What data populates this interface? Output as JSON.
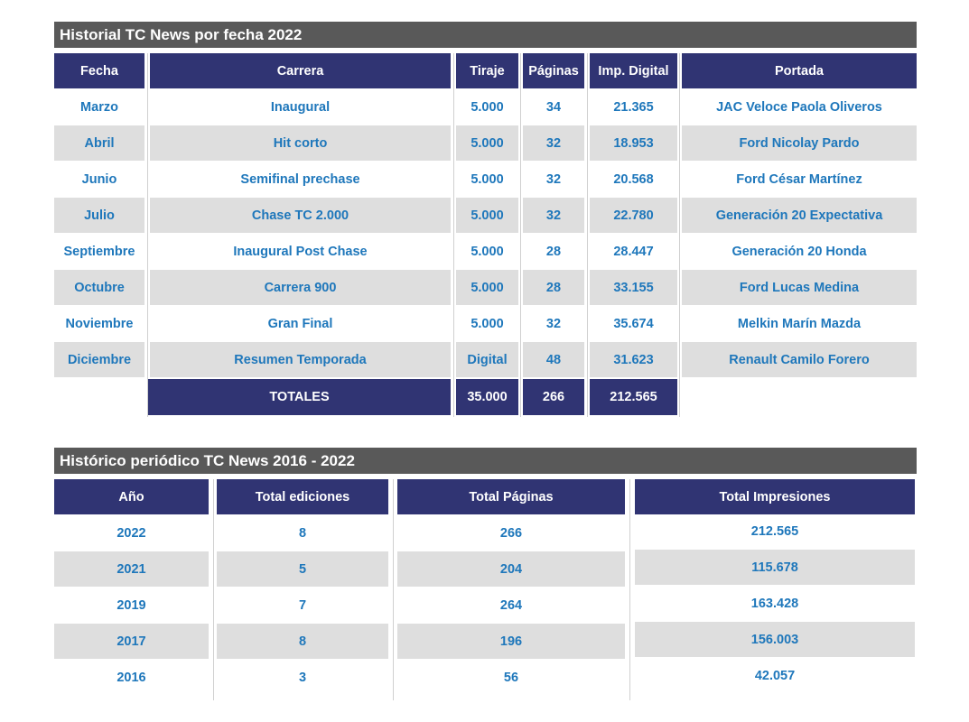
{
  "table1": {
    "title": "Historial TC News por fecha 2022",
    "headers": {
      "fecha": "Fecha",
      "carrera": "Carrera",
      "tiraje": "Tiraje",
      "paginas": "Páginas",
      "imp_digital": "Imp. Digital",
      "portada": "Portada"
    },
    "rows": [
      {
        "fecha": "Marzo",
        "carrera": "Inaugural",
        "tiraje": "5.000",
        "paginas": "34",
        "imp_digital": "21.365",
        "portada": "JAC Veloce Paola Oliveros"
      },
      {
        "fecha": "Abril",
        "carrera": "Hit corto",
        "tiraje": "5.000",
        "paginas": "32",
        "imp_digital": "18.953",
        "portada": "Ford Nicolay Pardo"
      },
      {
        "fecha": "Junio",
        "carrera": "Semifinal prechase",
        "tiraje": "5.000",
        "paginas": "32",
        "imp_digital": "20.568",
        "portada": "Ford César Martínez"
      },
      {
        "fecha": "Julio",
        "carrera": "Chase TC 2.000",
        "tiraje": "5.000",
        "paginas": "32",
        "imp_digital": "22.780",
        "portada": "Generación 20 Expectativa"
      },
      {
        "fecha": "Septiembre",
        "carrera": "Inaugural Post Chase",
        "tiraje": "5.000",
        "paginas": "28",
        "imp_digital": "28.447",
        "portada": "Generación 20 Honda"
      },
      {
        "fecha": "Octubre",
        "carrera": "Carrera 900",
        "tiraje": "5.000",
        "paginas": "28",
        "imp_digital": "33.155",
        "portada": "Ford Lucas Medina"
      },
      {
        "fecha": "Noviembre",
        "carrera": "Gran Final",
        "tiraje": "5.000",
        "paginas": "32",
        "imp_digital": "35.674",
        "portada": "Melkin Marín Mazda"
      },
      {
        "fecha": "Diciembre",
        "carrera": "Resumen Temporada",
        "tiraje": "Digital",
        "paginas": "48",
        "imp_digital": "31.623",
        "portada": "Renault Camilo Forero"
      }
    ],
    "totals": {
      "label": "TOTALES",
      "tiraje": "35.000",
      "paginas": "266",
      "imp_digital": "212.565"
    }
  },
  "table2": {
    "title": "Histórico periódico TC News 2016 - 2022",
    "headers": {
      "anio": "Año",
      "ediciones": "Total ediciones",
      "paginas": "Total Páginas",
      "impresiones": "Total Impresiones"
    },
    "rows": [
      {
        "anio": "2022",
        "ediciones": "8",
        "paginas": "266",
        "impresiones": "212.565"
      },
      {
        "anio": "2021",
        "ediciones": "5",
        "paginas": "204",
        "impresiones": "115.678"
      },
      {
        "anio": "2019",
        "ediciones": "7",
        "paginas": "264",
        "impresiones": "163.428"
      },
      {
        "anio": "2017",
        "ediciones": "8",
        "paginas": "196",
        "impresiones": "156.003"
      },
      {
        "anio": "2016",
        "ediciones": "3",
        "paginas": "56",
        "impresiones": "42.057"
      }
    ]
  },
  "colors": {
    "header_bg": "#303473",
    "section_bar": "#595959",
    "cell_text": "#1e77bb",
    "shade": "#dedede"
  }
}
